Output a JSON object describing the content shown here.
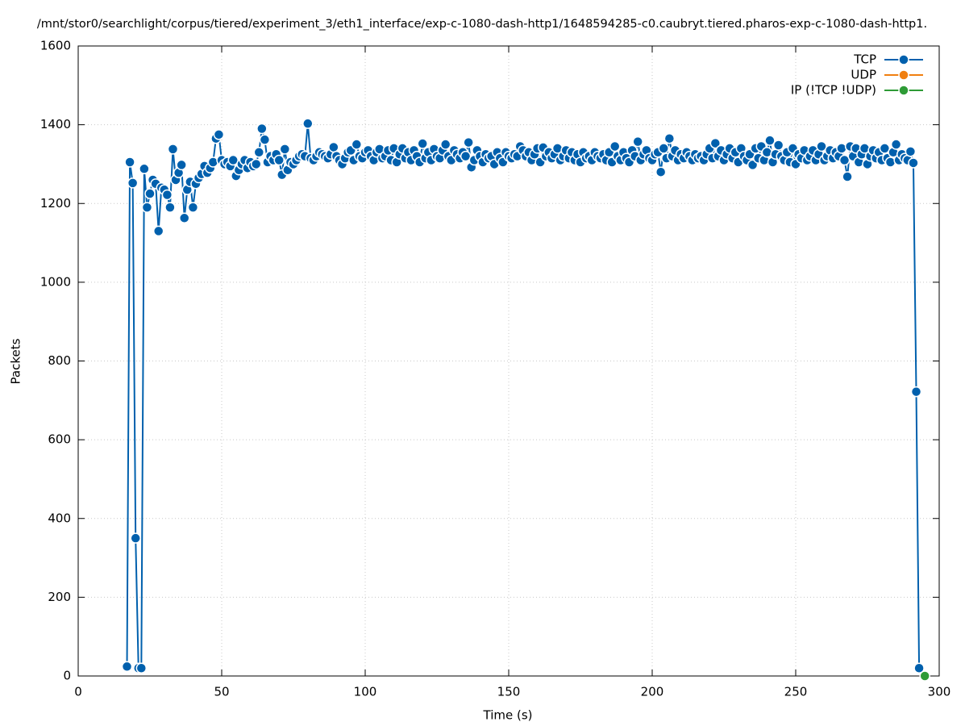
{
  "chart_data": {
    "type": "line",
    "title": "/mnt/stor0/searchlight/corpus/tiered/experiment_3/eth1_interface/exp-c-1080-dash-http1/1648594285-c0.caubryt.tiered.pharos-exp-c-1080-dash-http1.",
    "x_label": "Time (s)",
    "y_label": "Packets",
    "xlim": [
      0,
      300
    ],
    "xticks": [
      0,
      50,
      100,
      150,
      200,
      250,
      300
    ],
    "ylim": [
      0,
      1600
    ],
    "yticks": [
      0,
      200,
      400,
      600,
      800,
      1000,
      1200,
      1400,
      1600
    ],
    "grid": true,
    "legend": "top-right",
    "series": [
      {
        "name": "TCP",
        "color": "#0060ad",
        "x": [
          17,
          18,
          19,
          20,
          21,
          22,
          23,
          24,
          25,
          26,
          27,
          28,
          29,
          30,
          31,
          32,
          33,
          34,
          35,
          36,
          37,
          38,
          39,
          40,
          41,
          42,
          43,
          44,
          45,
          46,
          47,
          48,
          49,
          50,
          51,
          52,
          53,
          54,
          55,
          56,
          57,
          58,
          59,
          60,
          61,
          62,
          63,
          64,
          65,
          66,
          67,
          68,
          69,
          70,
          71,
          72,
          73,
          74,
          75,
          76,
          77,
          78,
          79,
          80,
          81,
          82,
          83,
          84,
          85,
          86,
          87,
          88,
          89,
          90,
          91,
          92,
          93,
          94,
          95,
          96,
          97,
          98,
          99,
          100,
          101,
          102,
          103,
          104,
          105,
          106,
          107,
          108,
          109,
          110,
          111,
          112,
          113,
          114,
          115,
          116,
          117,
          118,
          119,
          120,
          121,
          122,
          123,
          124,
          125,
          126,
          127,
          128,
          129,
          130,
          131,
          132,
          133,
          134,
          135,
          136,
          137,
          138,
          139,
          140,
          141,
          142,
          143,
          144,
          145,
          146,
          147,
          148,
          149,
          150,
          151,
          152,
          153,
          154,
          155,
          156,
          157,
          158,
          159,
          160,
          161,
          162,
          163,
          164,
          165,
          166,
          167,
          168,
          169,
          170,
          171,
          172,
          173,
          174,
          175,
          176,
          177,
          178,
          179,
          180,
          181,
          182,
          183,
          184,
          185,
          186,
          187,
          188,
          189,
          190,
          191,
          192,
          193,
          194,
          195,
          196,
          197,
          198,
          199,
          200,
          201,
          202,
          203,
          204,
          205,
          206,
          207,
          208,
          209,
          210,
          211,
          212,
          213,
          214,
          215,
          216,
          217,
          218,
          219,
          220,
          221,
          222,
          223,
          224,
          225,
          226,
          227,
          228,
          229,
          230,
          231,
          232,
          233,
          234,
          235,
          236,
          237,
          238,
          239,
          240,
          241,
          242,
          243,
          244,
          245,
          246,
          247,
          248,
          249,
          250,
          251,
          252,
          253,
          254,
          255,
          256,
          257,
          258,
          259,
          260,
          261,
          262,
          263,
          264,
          265,
          266,
          267,
          268,
          269,
          270,
          271,
          272,
          273,
          274,
          275,
          276,
          277,
          278,
          279,
          280,
          281,
          282,
          283,
          284,
          285,
          286,
          287,
          288,
          289,
          290,
          291,
          292,
          293
        ],
        "values": [
          24,
          1305,
          1252,
          350,
          20,
          20,
          1288,
          1190,
          1225,
          1260,
          1250,
          1130,
          1240,
          1235,
          1222,
          1190,
          1338,
          1260,
          1278,
          1298,
          1163,
          1235,
          1255,
          1190,
          1250,
          1265,
          1275,
          1295,
          1278,
          1290,
          1305,
          1365,
          1375,
          1310,
          1300,
          1305,
          1295,
          1310,
          1270,
          1285,
          1300,
          1310,
          1290,
          1305,
          1295,
          1300,
          1330,
          1390,
          1362,
          1305,
          1320,
          1310,
          1325,
          1310,
          1273,
          1338,
          1285,
          1305,
          1300,
          1310,
          1320,
          1325,
          1320,
          1403,
          1315,
          1310,
          1320,
          1330,
          1325,
          1320,
          1315,
          1325,
          1343,
          1320,
          1310,
          1300,
          1315,
          1330,
          1335,
          1310,
          1350,
          1320,
          1315,
          1330,
          1335,
          1320,
          1310,
          1330,
          1338,
          1315,
          1320,
          1335,
          1310,
          1340,
          1305,
          1325,
          1340,
          1315,
          1330,
          1310,
          1335,
          1320,
          1305,
          1352,
          1315,
          1330,
          1310,
          1338,
          1320,
          1315,
          1335,
          1350,
          1320,
          1310,
          1335,
          1325,
          1315,
          1330,
          1320,
          1355,
          1292,
          1310,
          1335,
          1320,
          1305,
          1325,
          1315,
          1320,
          1300,
          1330,
          1315,
          1305,
          1330,
          1320,
          1315,
          1325,
          1320,
          1345,
          1335,
          1320,
          1330,
          1310,
          1325,
          1340,
          1305,
          1342,
          1320,
          1330,
          1315,
          1325,
          1340,
          1310,
          1320,
          1335,
          1315,
          1330,
          1310,
          1325,
          1305,
          1330,
          1315,
          1320,
          1310,
          1330,
          1320,
          1315,
          1325,
          1310,
          1330,
          1305,
          1345,
          1320,
          1310,
          1330,
          1315,
          1305,
          1335,
          1320,
          1357,
          1310,
          1325,
          1335,
          1315,
          1310,
          1325,
          1330,
          1280,
          1340,
          1315,
          1365,
          1320,
          1335,
          1310,
          1325,
          1315,
          1330,
          1320,
          1310,
          1325,
          1315,
          1320,
          1310,
          1325,
          1340,
          1315,
          1353,
          1320,
          1335,
          1310,
          1325,
          1340,
          1315,
          1330,
          1305,
          1340,
          1320,
          1310,
          1325,
          1298,
          1340,
          1315,
          1345,
          1310,
          1330,
          1360,
          1305,
          1325,
          1348,
          1320,
          1310,
          1330,
          1305,
          1340,
          1300,
          1325,
          1315,
          1335,
          1310,
          1320,
          1335,
          1310,
          1325,
          1345,
          1310,
          1320,
          1335,
          1315,
          1330,
          1320,
          1340,
          1310,
          1268,
          1345,
          1320,
          1340,
          1305,
          1325,
          1340,
          1300,
          1320,
          1335,
          1315,
          1330,
          1310,
          1340,
          1315,
          1305,
          1330,
          1350,
          1310,
          1325,
          1315,
          1310,
          1332,
          1303,
          722,
          20
        ]
      },
      {
        "name": "UDP",
        "color": "#f07f10",
        "x": [],
        "values": []
      },
      {
        "name": "IP (!TCP  !UDP)",
        "color": "#2e9b36",
        "x": [
          295
        ],
        "values": [
          0
        ]
      }
    ]
  }
}
